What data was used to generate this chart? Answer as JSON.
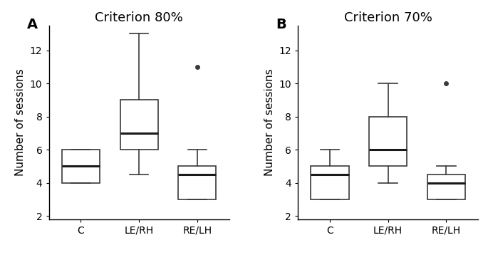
{
  "panel_A": {
    "title": "Criterion 80%",
    "label": "A",
    "categories": [
      "C",
      "LE/RH",
      "RE/LH"
    ],
    "boxes": [
      {
        "q1": 4.0,
        "median": 5.0,
        "q3": 6.0,
        "whislo": 4.0,
        "whishi": 6.0,
        "fliers": []
      },
      {
        "q1": 6.0,
        "median": 7.0,
        "q3": 9.0,
        "whislo": 4.5,
        "whishi": 13.0,
        "fliers": []
      },
      {
        "q1": 3.0,
        "median": 4.5,
        "q3": 5.0,
        "whislo": 3.0,
        "whishi": 6.0,
        "fliers": [
          11.0
        ]
      }
    ]
  },
  "panel_B": {
    "title": "Criterion 70%",
    "label": "B",
    "categories": [
      "C",
      "LE/RH",
      "RE/LH"
    ],
    "boxes": [
      {
        "q1": 3.0,
        "median": 4.5,
        "q3": 5.0,
        "whislo": 3.0,
        "whishi": 6.0,
        "fliers": []
      },
      {
        "q1": 5.0,
        "median": 6.0,
        "q3": 8.0,
        "whislo": 4.0,
        "whishi": 10.0,
        "fliers": []
      },
      {
        "q1": 3.0,
        "median": 4.0,
        "q3": 4.5,
        "whislo": 3.0,
        "whishi": 5.0,
        "fliers": [
          10.0
        ]
      }
    ]
  },
  "ylabel": "Number of sessions",
  "ylim": [
    1.8,
    13.5
  ],
  "yticks": [
    2,
    4,
    6,
    8,
    10,
    12
  ],
  "box_color": "#ffffff",
  "median_color": "#1a1a1a",
  "whisker_color": "#3a3a3a",
  "box_edge_color": "#3a3a3a",
  "flier_color": "#3a3a3a",
  "background_color": "#ffffff",
  "box_width": 0.65,
  "linewidth": 1.2,
  "median_linewidth": 2.2,
  "title_fontsize": 13,
  "label_fontsize": 14,
  "tick_fontsize": 10,
  "ylabel_fontsize": 11
}
